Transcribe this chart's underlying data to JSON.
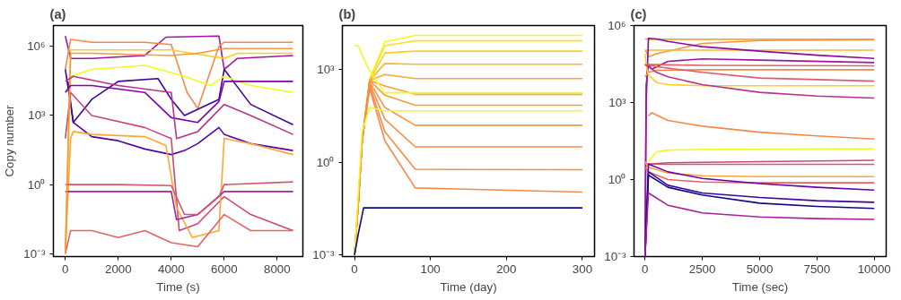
{
  "chart_data": [
    {
      "type": "line",
      "title": "(a)",
      "xlabel": "Time (s)",
      "ylabel": "Copy number",
      "log": true,
      "grid": false,
      "xlim": [
        -450,
        8970
      ],
      "ylim": [
        0.00075,
        8000000
      ],
      "xticks": [
        0,
        2000,
        4000,
        6000,
        8000
      ],
      "yticks": [
        {
          "value": 0.001,
          "label": "10⁻³"
        },
        {
          "value": 1,
          "label": "10⁰"
        },
        {
          "value": 1000,
          "label": "10³"
        },
        {
          "value": 1000000,
          "label": "10⁶"
        }
      ],
      "series": [
        {
          "color": "#9c179e",
          "x": [
            0,
            200,
            1000,
            3000,
            3800,
            5800,
            6000,
            6500,
            8600
          ],
          "values": [
            2800000,
            300000,
            300000,
            400000,
            2500000,
            2800000,
            100000,
            300000,
            400000
          ]
        },
        {
          "color": "#f48849",
          "x": [
            0,
            200,
            1000,
            3000,
            4000,
            4600,
            5000,
            5800,
            6000,
            8600
          ],
          "values": [
            100000,
            2000000,
            1500000,
            1500000,
            1200000,
            10000,
            2000,
            1000000,
            1500000,
            1500000
          ]
        },
        {
          "color": "#5302a3",
          "x": [
            100,
            300,
            1000,
            2000,
            3000,
            4000,
            4500,
            5000,
            5800,
            6000,
            7000,
            8600
          ],
          "values": [
            30000,
            500,
            120,
            80,
            35,
            20,
            30,
            60,
            300,
            150,
            60,
            30
          ]
        },
        {
          "color": "#3e049c",
          "x": [
            0,
            300,
            1000,
            2000,
            3500,
            4000,
            4500,
            5800,
            6000,
            7000,
            8600
          ],
          "values": [
            100000,
            500,
            5000,
            30000,
            40000,
            5000,
            1000,
            5000,
            100000,
            3000,
            400
          ]
        },
        {
          "color": "#f0f921",
          "x": [
            0,
            200,
            1000,
            3000,
            4500,
            5500,
            6000,
            7000,
            8600
          ],
          "values": [
            0.001,
            50000,
            100000,
            150000,
            50000,
            20000,
            50000,
            20000,
            10000
          ]
        },
        {
          "color": "#fcce25",
          "x": [
            0,
            200,
            2000,
            4000,
            6000,
            6500,
            8600
          ],
          "values": [
            0.001,
            700000,
            700000,
            700000,
            300000,
            500000,
            500000
          ]
        },
        {
          "color": "#cc4778",
          "x": [
            0,
            200,
            1000,
            3000,
            4000,
            4300,
            5000,
            6000,
            7000,
            8600
          ],
          "values": [
            100,
            10000,
            1000,
            300,
            100,
            0.01,
            0.02,
            0.3,
            0.05,
            0.01
          ]
        },
        {
          "color": "#fca636",
          "x": [
            0,
            200,
            300,
            1000,
            3000,
            3800,
            4200,
            4800,
            5800,
            6000,
            7000,
            8600
          ],
          "values": [
            0.001,
            100,
            200,
            150,
            120,
            50,
            0.1,
            0.005,
            0.01,
            100,
            60,
            20
          ]
        },
        {
          "color": "#a72197",
          "x": [
            0,
            500,
            3000,
            4000,
            4200,
            5000,
            6000,
            8600
          ],
          "values": [
            0.5,
            0.5,
            0.5,
            0.5,
            0.03,
            0.05,
            0.5,
            0.5
          ]
        },
        {
          "color": "#d5546e",
          "x": [
            0,
            2000,
            4000,
            4500,
            5000,
            5800,
            6000,
            8600
          ],
          "values": [
            1,
            1,
            0.9,
            0.05,
            0.05,
            0.3,
            1,
            1.3
          ]
        },
        {
          "color": "#e16462",
          "x": [
            0,
            200,
            1000,
            2000,
            3000,
            4000,
            5000,
            6000,
            7000,
            8600
          ],
          "values": [
            0.001,
            0.01,
            0.01,
            0.005,
            0.01,
            0.003,
            0.002,
            0.05,
            0.01,
            0.01
          ]
        },
        {
          "color": "#f89540",
          "x": [
            0,
            200,
            1000,
            4000,
            5000,
            6000,
            8600
          ],
          "values": [
            0.001,
            500000,
            500000,
            400000,
            500000,
            800000,
            800000
          ]
        },
        {
          "color": "#7e03a8",
          "x": [
            0,
            200,
            1000,
            3000,
            4000,
            5000,
            5800,
            6000,
            8600
          ],
          "values": [
            10000,
            20000,
            20000,
            10000,
            800,
            500,
            4000,
            30000,
            30000
          ]
        },
        {
          "color": "#b83289",
          "x": [
            0,
            300,
            2000,
            4000,
            4200,
            5000,
            6000,
            7000,
            8600
          ],
          "values": [
            30000,
            50000,
            20000,
            10000,
            100,
            200,
            3000,
            1000,
            150
          ]
        }
      ]
    },
    {
      "type": "line",
      "title": "(b)",
      "xlabel": "Time (day)",
      "log": true,
      "grid": false,
      "xlim": [
        -16,
        316
      ],
      "ylim": [
        0.0009,
        27000
      ],
      "xticks": [
        0,
        100,
        200,
        300
      ],
      "yticks": [
        {
          "value": 0.001,
          "label": "10⁻³"
        },
        {
          "value": 1,
          "label": "10⁰"
        },
        {
          "value": 1000,
          "label": "10³"
        }
      ],
      "series": [
        {
          "color": "#f0f921",
          "x": [
            0,
            5,
            10,
            20,
            40,
            80,
            300
          ],
          "values": [
            0.001,
            0.05,
            5,
            500,
            8000,
            13000,
            13000
          ]
        },
        {
          "color": "#f7e225",
          "x": [
            0,
            5,
            10,
            20,
            40,
            80,
            300
          ],
          "values": [
            0.001,
            0.05,
            5,
            500,
            6000,
            8600,
            8600
          ]
        },
        {
          "color": "#fcce25",
          "x": [
            0,
            5,
            10,
            20,
            40,
            80,
            300
          ],
          "values": [
            0.001,
            0.05,
            5,
            450,
            3500,
            4000,
            4000
          ]
        },
        {
          "color": "#fdb42f",
          "x": [
            0,
            5,
            10,
            20,
            40,
            80,
            300
          ],
          "values": [
            0.001,
            0.05,
            5,
            450,
            1600,
            1500,
            1500
          ]
        },
        {
          "color": "#fca636",
          "x": [
            0,
            5,
            10,
            20,
            40,
            80,
            300
          ],
          "values": [
            0.001,
            0.05,
            5,
            450,
            700,
            520,
            520
          ]
        },
        {
          "color": "#faa036",
          "x": [
            0,
            5,
            10,
            20,
            40,
            80,
            300
          ],
          "values": [
            0.001,
            0.05,
            5,
            450,
            300,
            160,
            160
          ]
        },
        {
          "color": "#f99b3a",
          "x": [
            0,
            5,
            10,
            20,
            40,
            80,
            300
          ],
          "values": [
            0.001,
            0.05,
            5,
            450,
            150,
            71,
            71
          ]
        },
        {
          "color": "#f89540",
          "x": [
            0,
            5,
            10,
            20,
            40,
            80,
            300
          ],
          "values": [
            0.001,
            0.05,
            5,
            400,
            60,
            16,
            16
          ]
        },
        {
          "color": "#f79044",
          "x": [
            0,
            5,
            10,
            20,
            40,
            80,
            300
          ],
          "values": [
            0.001,
            0.05,
            5,
            350,
            25,
            3.2,
            3.2
          ]
        },
        {
          "color": "#f68d45",
          "x": [
            0,
            5,
            10,
            20,
            40,
            80,
            300
          ],
          "values": [
            0.001,
            0.05,
            5,
            300,
            10,
            0.6,
            0.58
          ]
        },
        {
          "color": "#f48849",
          "x": [
            0,
            5,
            10,
            20,
            40,
            80,
            300
          ],
          "values": [
            0.001,
            0.05,
            5,
            250,
            5,
            0.15,
            0.11
          ]
        },
        {
          "color": "#f0f921",
          "x": [
            0,
            5,
            10,
            20,
            40,
            60,
            300
          ],
          "values": [
            6000,
            6000,
            3000,
            900,
            180,
            180,
            180
          ]
        },
        {
          "color": "#f0f921",
          "x": [
            0,
            5,
            10,
            20,
            40,
            60,
            300
          ],
          "values": [
            0.001,
            0.1,
            10,
            60,
            47,
            47,
            47
          ]
        },
        {
          "color": "#0d0887",
          "x": [
            0,
            5,
            12,
            300
          ],
          "values": [
            0.001,
            0.005,
            0.034,
            0.034
          ]
        }
      ]
    },
    {
      "type": "line",
      "title": "(c)",
      "xlabel": "Time (sec)",
      "log": true,
      "grid": false,
      "xlim": [
        -480,
        10520
      ],
      "ylim": [
        0.001,
        1000000
      ],
      "xticks": [
        0,
        2500,
        5000,
        7500,
        10000
      ],
      "yticks": [
        {
          "value": 0.001,
          "label": "10⁻³"
        },
        {
          "value": 1,
          "label": "10⁰"
        },
        {
          "value": 1000,
          "label": "10³"
        },
        {
          "value": 1000000,
          "label": "10⁶"
        }
      ],
      "series": [
        {
          "color": "#fca636",
          "x": [
            0,
            50,
            150,
            1000,
            5000,
            10000
          ],
          "values": [
            300000,
            300000,
            290000,
            290000,
            290000,
            290000
          ]
        },
        {
          "color": "#f89540",
          "x": [
            0,
            50,
            150,
            500,
            2500,
            5000,
            10000
          ],
          "values": [
            100000,
            100000,
            60000,
            80000,
            200000,
            260000,
            280000
          ]
        },
        {
          "color": "#fdb42f",
          "x": [
            0,
            50,
            150,
            1000,
            5000,
            10000
          ],
          "values": [
            110000,
            110000,
            110000,
            110000,
            110000,
            110000
          ]
        },
        {
          "color": "#8b0aa5",
          "x": [
            0,
            50,
            150,
            500,
            1000,
            2500,
            5000,
            7500,
            10000
          ],
          "values": [
            0.001,
            1000,
            320000,
            300000,
            240000,
            150000,
            100000,
            70000,
            52000
          ]
        },
        {
          "color": "#9c179e",
          "x": [
            0,
            50,
            150,
            300,
            1000,
            2500,
            5000,
            10000
          ],
          "values": [
            0.001,
            5000,
            30000,
            20000,
            40000,
            50000,
            45000,
            36000
          ]
        },
        {
          "color": "#e16462",
          "x": [
            0,
            150,
            500,
            2500,
            10000
          ],
          "values": [
            30000,
            30000,
            30000,
            28000,
            27000
          ]
        },
        {
          "color": "#f48849",
          "x": [
            0,
            150,
            500,
            2500,
            10000
          ],
          "values": [
            10000,
            15000,
            18000,
            19000,
            19000
          ]
        },
        {
          "color": "#db5c68",
          "x": [
            0,
            150,
            500,
            2500,
            5000,
            10000
          ],
          "values": [
            30000,
            30000,
            25000,
            15000,
            9000,
            6800
          ]
        },
        {
          "color": "#fcce25",
          "x": [
            0,
            50,
            150,
            500,
            1000,
            2500,
            10000
          ],
          "values": [
            80000,
            30000,
            12000,
            6000,
            5000,
            4500,
            4500
          ]
        },
        {
          "color": "#b83289",
          "x": [
            0,
            150,
            500,
            1000,
            2500,
            5000,
            7500,
            10000
          ],
          "values": [
            30000,
            25000,
            15000,
            10000,
            5000,
            2500,
            1800,
            1500
          ]
        },
        {
          "color": "#f48849",
          "x": [
            150,
            300,
            1000,
            2500,
            5000,
            7500,
            10000
          ],
          "values": [
            300,
            400,
            200,
            120,
            70,
            50,
            38
          ]
        },
        {
          "color": "#f0f921",
          "x": [
            150,
            500,
            1000,
            2500,
            10000
          ],
          "values": [
            5,
            12,
            14,
            15,
            15.6
          ]
        },
        {
          "color": "#cc4778",
          "x": [
            0,
            150,
            1000,
            5000,
            10000
          ],
          "values": [
            4,
            4,
            4.5,
            5,
            5.6
          ]
        },
        {
          "color": "#d5546e",
          "x": [
            0,
            150,
            1000,
            5000,
            10000
          ],
          "values": [
            4,
            4,
            3.9,
            3.9,
            3.9
          ]
        },
        {
          "color": "#fca636",
          "x": [
            0,
            150,
            1000,
            2500,
            5000,
            10000
          ],
          "values": [
            5,
            3,
            1.8,
            1.4,
            1.3,
            1.3
          ]
        },
        {
          "color": "#e16462",
          "x": [
            0,
            150,
            1000,
            2500,
            5000,
            10000
          ],
          "values": [
            3,
            2,
            1,
            0.8,
            0.75,
            0.75
          ]
        },
        {
          "color": "#6a00a8",
          "x": [
            0,
            150,
            1000,
            2500,
            5000,
            7500,
            10000
          ],
          "values": [
            0.001,
            4,
            2,
            1.1,
            0.7,
            0.5,
            0.39
          ]
        },
        {
          "color": "#3e049c",
          "x": [
            0,
            150,
            1000,
            2500,
            5000,
            7500,
            10000
          ],
          "values": [
            0.001,
            2,
            0.6,
            0.3,
            0.2,
            0.15,
            0.13
          ]
        },
        {
          "color": "#0d0887",
          "x": [
            0,
            150,
            1000,
            2500,
            5000,
            7500,
            10000
          ],
          "values": [
            0.001,
            1.5,
            0.5,
            0.25,
            0.12,
            0.09,
            0.075
          ]
        },
        {
          "color": "#a72197",
          "x": [
            0,
            150,
            1000,
            2500,
            5000,
            7500,
            10000
          ],
          "values": [
            0.001,
            0.3,
            0.1,
            0.05,
            0.035,
            0.03,
            0.028
          ]
        }
      ]
    }
  ]
}
